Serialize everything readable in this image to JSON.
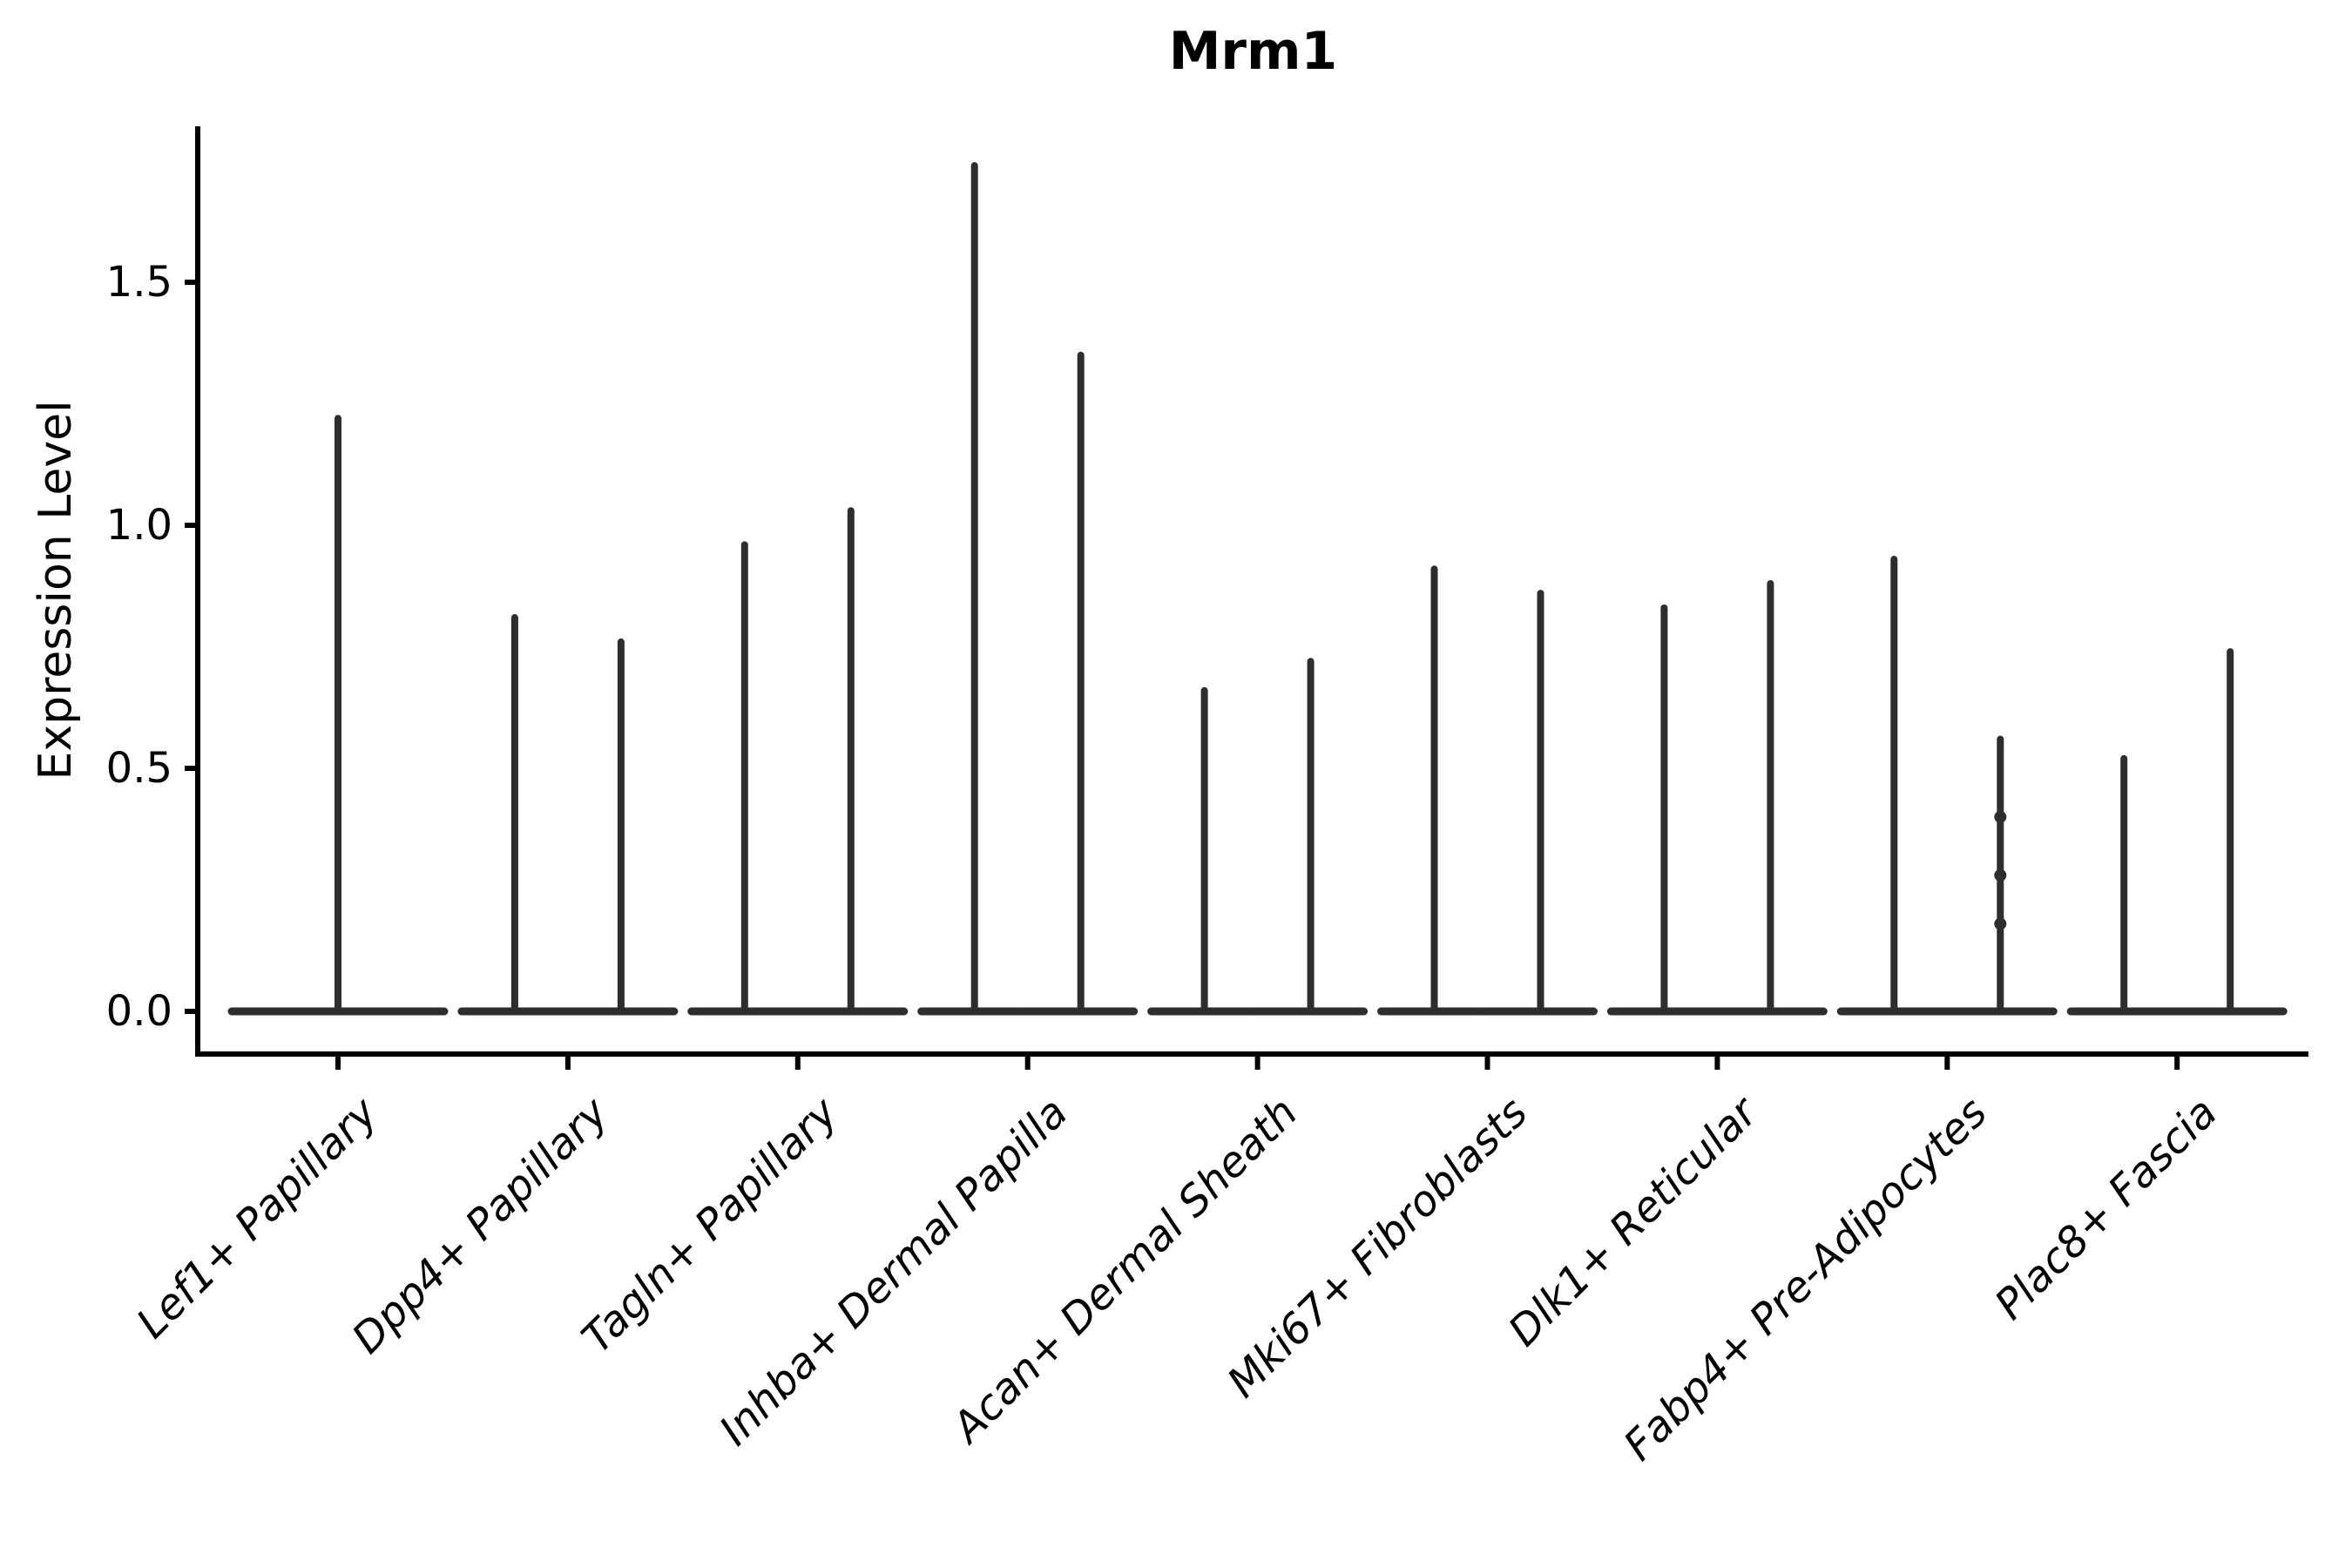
{
  "chart": {
    "title": "Mrm1",
    "ylabel": "Expression Level"
  },
  "chart_data": {
    "type": "violin",
    "title": "Mrm1",
    "xlabel": "",
    "ylabel": "Expression Level",
    "yticks": [
      "0.0",
      "0.5",
      "1.0",
      "1.5"
    ],
    "ytick_values": [
      0.0,
      0.5,
      1.0,
      1.5
    ],
    "ylim": [
      -0.05,
      1.85
    ],
    "grid": false,
    "legend": "none",
    "violin_color": "#2e2e2e",
    "axis_color": "#000000",
    "categories": [
      "Lef1+ Papillary",
      "Dpp4+ Papillary",
      "Tagln+ Papillary",
      "Inhba+ Dermal Papilla",
      "Acan+ Dermal Sheath",
      "Mki67+ Fibroblasts",
      "Dlk1+ Reticular",
      "Fabp4+ Pre-Adipocytes",
      "Plac8+ Fascia"
    ],
    "groups": [
      {
        "label": "Lef1+ Papillary",
        "violins": [
          {
            "min": 0,
            "max": 1.22
          }
        ]
      },
      {
        "label": "Dpp4+ Papillary",
        "violins": [
          {
            "min": 0,
            "max": 0.81
          },
          {
            "min": 0,
            "max": 0.76
          }
        ]
      },
      {
        "label": "Tagln+ Papillary",
        "violins": [
          {
            "min": 0,
            "max": 0.96
          },
          {
            "min": 0,
            "max": 1.03
          }
        ]
      },
      {
        "label": "Inhba+ Dermal Papilla",
        "violins": [
          {
            "min": 0,
            "max": 1.74
          },
          {
            "min": 0,
            "max": 1.35
          }
        ]
      },
      {
        "label": "Acan+ Dermal Sheath",
        "violins": [
          {
            "min": 0,
            "max": 0.66
          },
          {
            "min": 0,
            "max": 0.72
          }
        ]
      },
      {
        "label": "Mki67+ Fibroblasts",
        "violins": [
          {
            "min": 0,
            "max": 0.91
          },
          {
            "min": 0,
            "max": 0.86
          }
        ]
      },
      {
        "label": "Dlk1+ Reticular",
        "violins": [
          {
            "min": 0,
            "max": 0.83
          },
          {
            "min": 0,
            "max": 0.88
          }
        ]
      },
      {
        "label": "Fabp4+ Pre-Adipocytes",
        "violins": [
          {
            "min": 0,
            "max": 0.93
          },
          {
            "min": 0,
            "max": 0.56,
            "points": [
              0.4,
              0.28,
              0.18
            ]
          }
        ]
      },
      {
        "label": "Plac8+ Fascia",
        "violins": [
          {
            "min": 0,
            "max": 0.52
          },
          {
            "min": 0,
            "max": 0.74
          }
        ]
      }
    ]
  }
}
